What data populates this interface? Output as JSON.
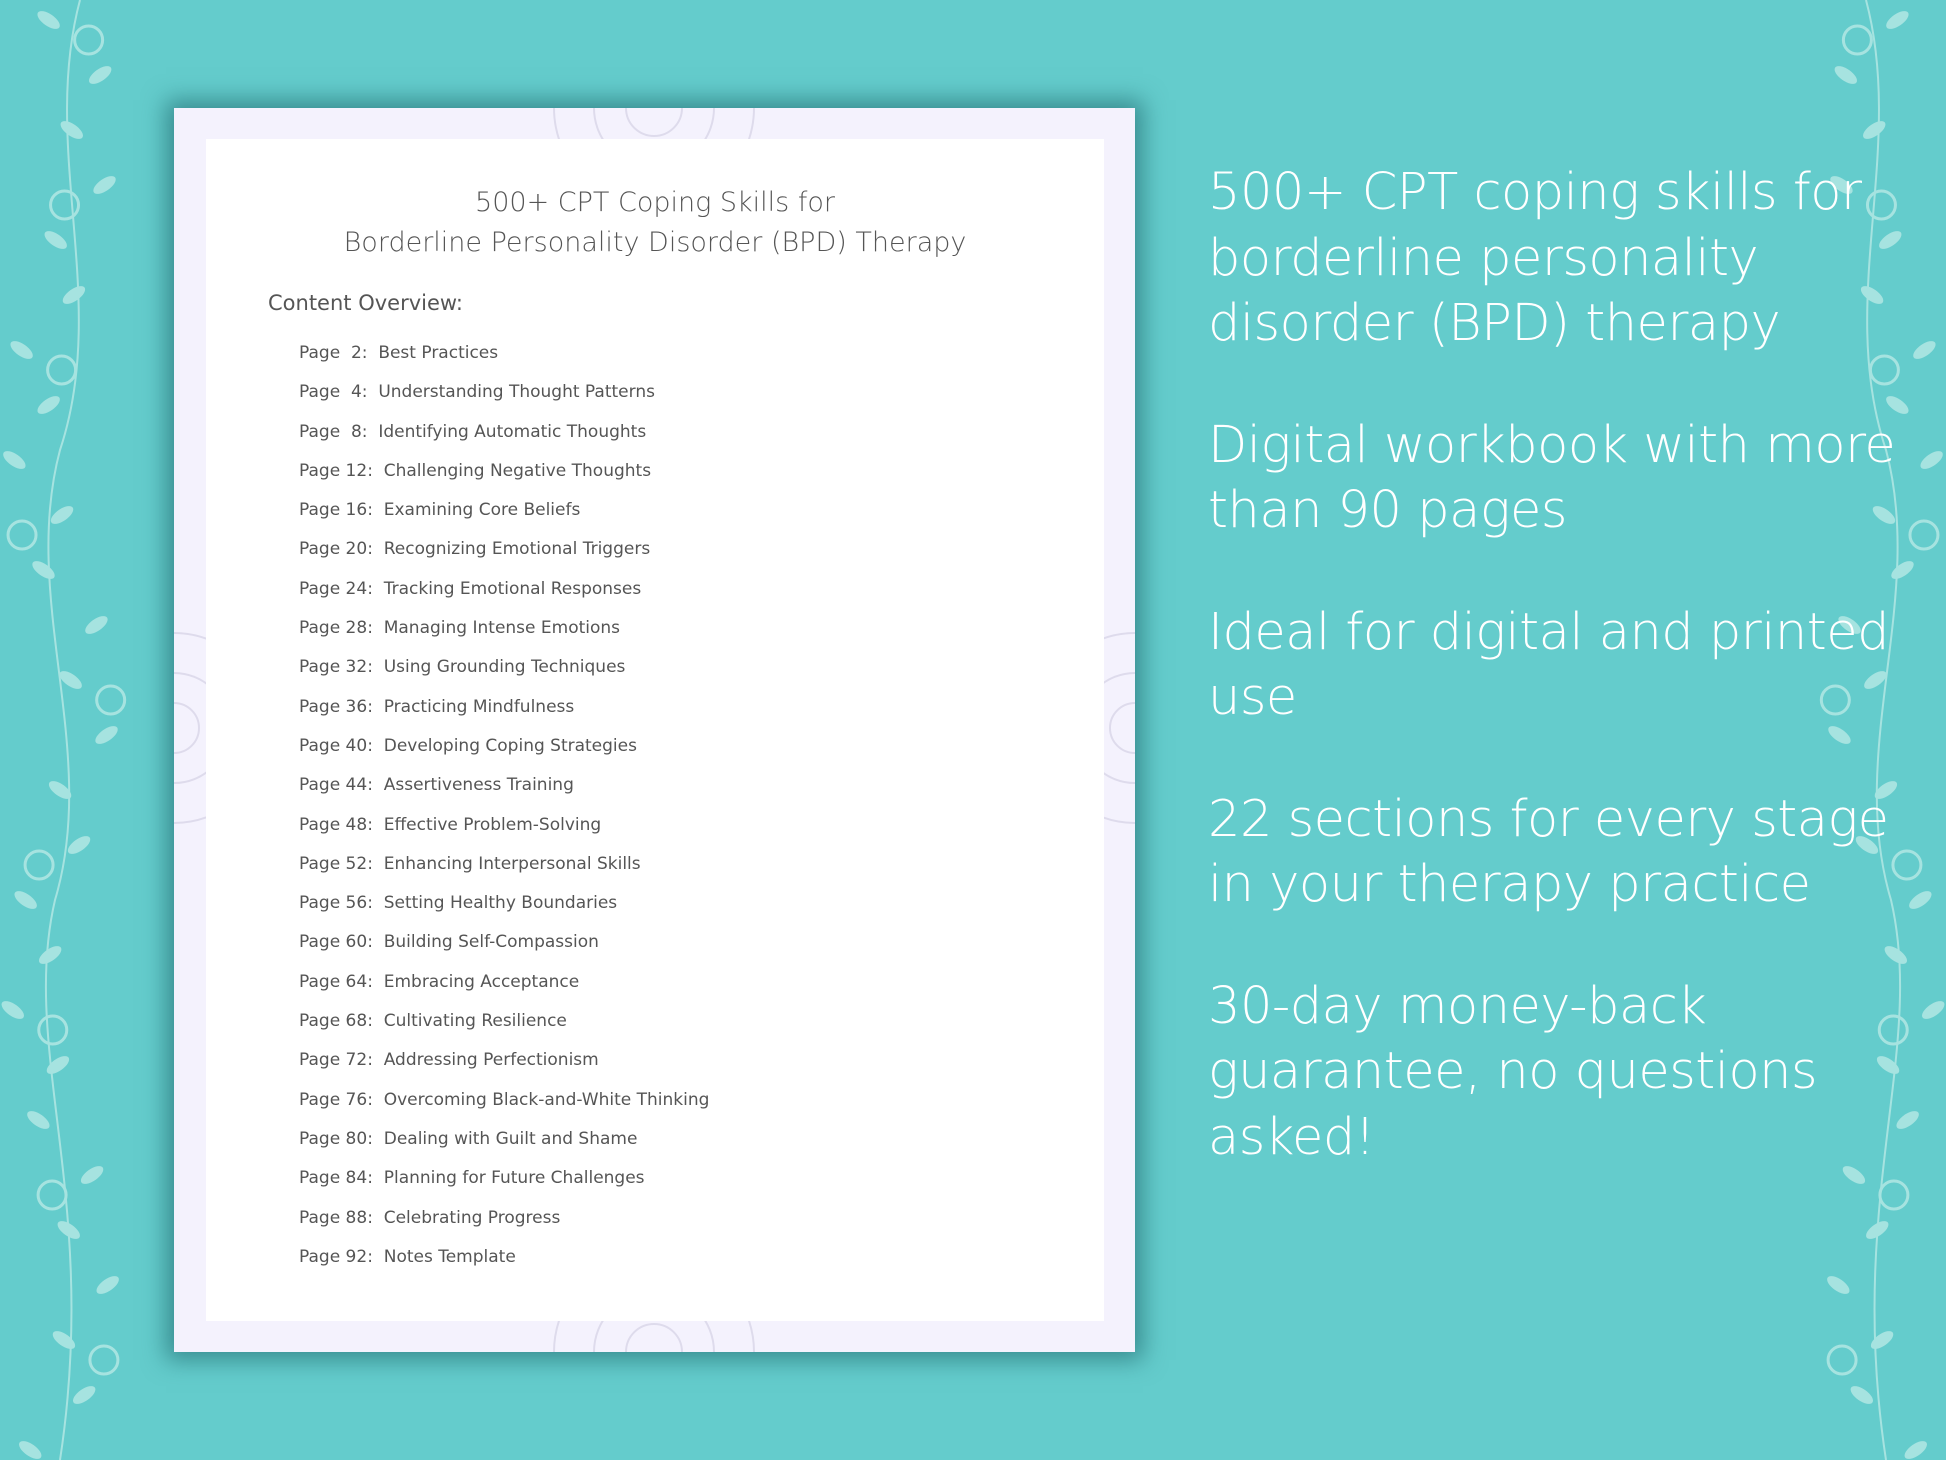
{
  "document": {
    "title_line1": "500+ CPT Coping Skills for",
    "title_line2": "Borderline Personality Disorder (BPD) Therapy",
    "overview_label": "Content Overview:",
    "toc": [
      "Page  2:  Best Practices",
      "Page  4:  Understanding Thought Patterns",
      "Page  8:  Identifying Automatic Thoughts",
      "Page 12:  Challenging Negative Thoughts",
      "Page 16:  Examining Core Beliefs",
      "Page 20:  Recognizing Emotional Triggers",
      "Page 24:  Tracking Emotional Responses",
      "Page 28:  Managing Intense Emotions",
      "Page 32:  Using Grounding Techniques",
      "Page 36:  Practicing Mindfulness",
      "Page 40:  Developing Coping Strategies",
      "Page 44:  Assertiveness Training",
      "Page 48:  Effective Problem-Solving",
      "Page 52:  Enhancing Interpersonal Skills",
      "Page 56:  Setting Healthy Boundaries",
      "Page 60:  Building Self-Compassion",
      "Page 64:  Embracing Acceptance",
      "Page 68:  Cultivating Resilience",
      "Page 72:  Addressing Perfectionism",
      "Page 76:  Overcoming Black-and-White Thinking",
      "Page 80:  Dealing with Guilt and Shame",
      "Page 84:  Planning for Future Challenges",
      "Page 88:  Celebrating Progress",
      "Page 92:  Notes Template"
    ]
  },
  "features": [
    "500+ CPT coping skills for borderline personality disorder (BPD) therapy",
    "Digital workbook with more than 90 pages",
    "Ideal for digital and printed use",
    "22 sections for every stage in your therapy practice",
    "30-day money-back guarantee, no questions asked!"
  ],
  "colors": {
    "background": "#64cccc",
    "vine": "#a6e3e0",
    "page_border": "#f4f2fd",
    "text": "#555555"
  },
  "icons": {
    "decor": "floral-vine",
    "page_decor": "mandala"
  }
}
